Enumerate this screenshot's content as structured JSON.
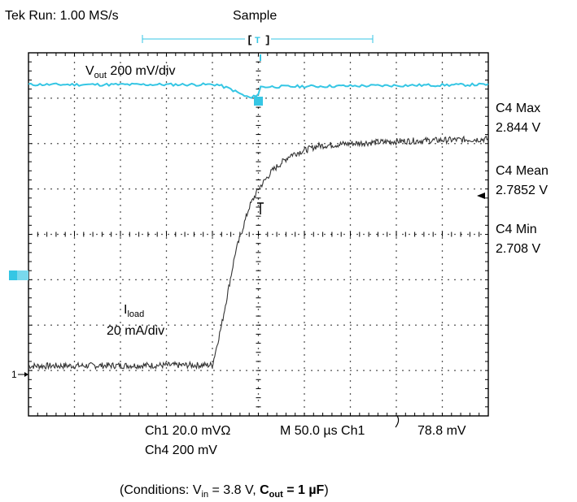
{
  "header": {
    "run_status": "Tek Run: 1.00 MS/s",
    "acq_mode": "Sample",
    "trigger_marker": "T"
  },
  "labels": {
    "vout_main": "V",
    "vout_sub": "out",
    "vout_scale": " 200 mV/div",
    "iload_main": "I",
    "iload_sub": "load",
    "iload_scale": "20 mA/div",
    "ch1_marker": "1"
  },
  "measurements": [
    {
      "name": "C4 Max",
      "value": "2.844 V"
    },
    {
      "name": "C4 Mean",
      "value": "2.7852 V"
    },
    {
      "name": "C4 Min",
      "value": "2.708 V"
    }
  ],
  "footer": {
    "ch1_scale": "Ch1 20.0 mVΩ",
    "timebase": "M 50.0 µs Ch1",
    "trigger_level": "78.8 mV",
    "ch4_scale": "Ch4 200 mV"
  },
  "caption": {
    "open": "(Conditions: V",
    "vin_sub": "in",
    "vin_eq": " = 3.8 V, ",
    "cout_main": "C",
    "cout_sub": "out",
    "cout_eq": " = 1 µF",
    "close": ")"
  },
  "colors": {
    "vout_trace": "#35c6e4",
    "iload_trace": "#333333",
    "grid": "#000000"
  },
  "chart_data": {
    "type": "line",
    "grid": true,
    "x_divisions": 10,
    "y_divisions": 8,
    "series": [
      {
        "name": "Vout",
        "color": "#35c6e4",
        "x_div": [
          0,
          4.1,
          4.4,
          4.7,
          4.85,
          5.0,
          5.05,
          10
        ],
        "y_div": [
          7.3,
          7.3,
          7.2,
          7.05,
          7.0,
          7.1,
          7.25,
          7.3
        ],
        "noise": 0.03
      },
      {
        "name": "Iload",
        "color": "#333333",
        "x_div": [
          0,
          4.0,
          4.2,
          4.5,
          4.8,
          5.0,
          5.3,
          5.7,
          6.3,
          7.0,
          8.0,
          10
        ],
        "y_div": [
          1.1,
          1.12,
          2.0,
          3.6,
          4.6,
          5.0,
          5.4,
          5.75,
          5.95,
          6.0,
          6.05,
          6.1
        ],
        "noise": 0.07
      }
    ]
  }
}
